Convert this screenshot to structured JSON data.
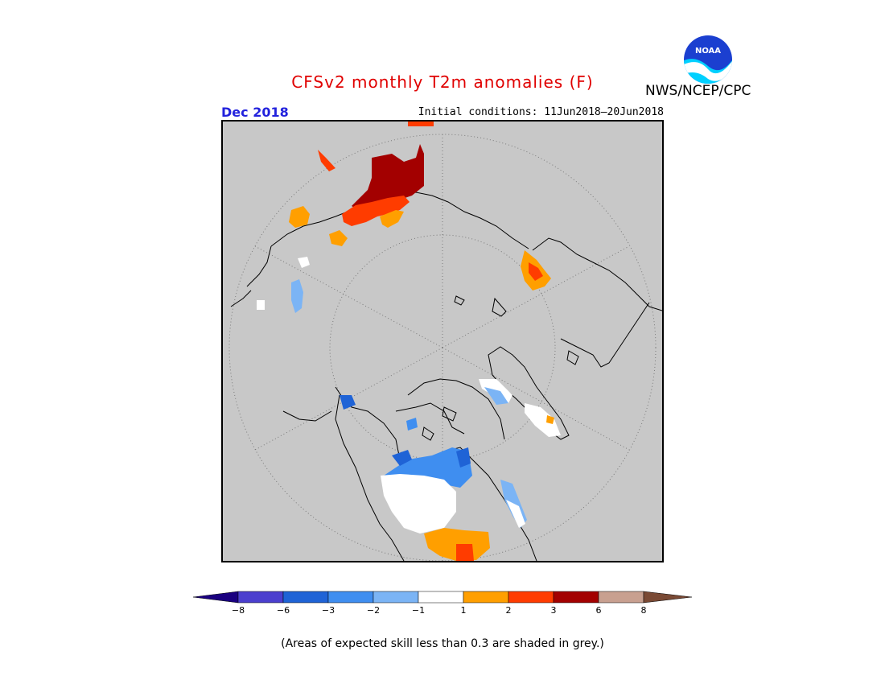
{
  "header": {
    "title": "CFSv2 monthly T2m anomalies (F)",
    "organization": "NWS/NCEP/CPC",
    "month": "Dec 2018",
    "initial_conditions": "Initial conditions: 11Jun2018–20Jun2018",
    "logo_text": "NOAA"
  },
  "colors": {
    "map_background": "#c8c8c8",
    "title": "#e00000",
    "month": "#2222dd"
  },
  "colorbar": {
    "bins": [
      {
        "color": "#1a0080"
      },
      {
        "color": "#4b3fce"
      },
      {
        "color": "#1f63d6"
      },
      {
        "color": "#3f8ef0"
      },
      {
        "color": "#7bb4f5"
      },
      {
        "color": "#ffffff"
      },
      {
        "color": "#ff9f00"
      },
      {
        "color": "#ff3c00"
      },
      {
        "color": "#a30000"
      },
      {
        "color": "#c8a090"
      },
      {
        "color": "#7a4a35"
      }
    ],
    "ticks": [
      "−8",
      "−6",
      "−3",
      "−2",
      "−1",
      "1",
      "2",
      "3",
      "6",
      "8"
    ]
  },
  "footnote": "(Areas of expected skill less than 0.3 are shaded in grey.)"
}
